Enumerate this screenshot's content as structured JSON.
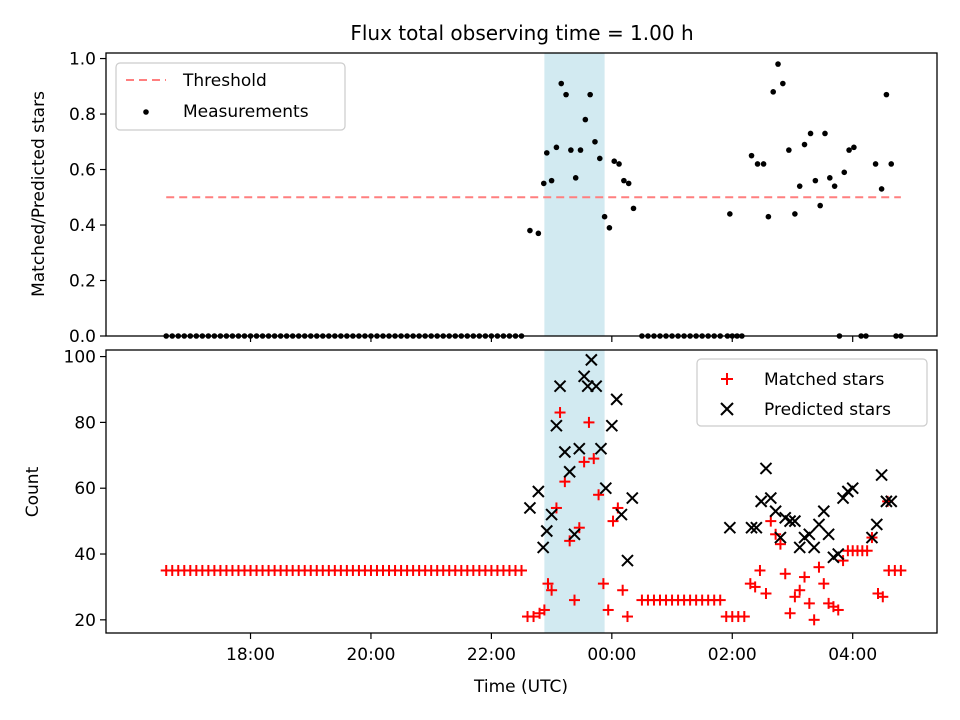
{
  "title": "Flux total observing time = 1.00 h",
  "chart_data": [
    {
      "type": "scatter",
      "panel": "top",
      "ylabel": "Matched/Predicted stars",
      "x_unit": "hours since 16:00 UTC",
      "xlim": [
        15.6,
        29.4
      ],
      "ylim": [
        0,
        1.02
      ],
      "yticks": [
        0.0,
        0.2,
        0.4,
        0.6,
        0.8,
        1.0
      ],
      "ytick_labels": [
        "0.0",
        "0.2",
        "0.4",
        "0.6",
        "0.8",
        "1.0"
      ],
      "highlight_span": [
        22.88,
        23.88
      ],
      "threshold": {
        "label": "Threshold",
        "y": 0.5,
        "x_range": [
          16.6,
          28.8
        ],
        "color": "#ff7f7f"
      },
      "legend": {
        "position": "upper left",
        "entries": [
          "Threshold",
          "Measurements"
        ]
      },
      "series": [
        {
          "name": "Measurements",
          "color": "#000000",
          "marker": "dot",
          "zero_run": {
            "x_start": 16.6,
            "x_end": 22.5,
            "step": 0.1,
            "y": 0
          },
          "zero_run2": {
            "x_start": 24.5,
            "x_end": 25.8,
            "step": 0.1,
            "y": 0
          },
          "points": [
            [
              22.64,
              0.38
            ],
            [
              22.78,
              0.37
            ],
            [
              22.87,
              0.55
            ],
            [
              22.92,
              0.66
            ],
            [
              23.0,
              0.56
            ],
            [
              23.08,
              0.68
            ],
            [
              23.16,
              0.91
            ],
            [
              23.24,
              0.87
            ],
            [
              23.32,
              0.67
            ],
            [
              23.4,
              0.57
            ],
            [
              23.48,
              0.67
            ],
            [
              23.56,
              0.78
            ],
            [
              23.64,
              0.87
            ],
            [
              23.72,
              0.7
            ],
            [
              23.8,
              0.64
            ],
            [
              23.88,
              0.43
            ],
            [
              23.96,
              0.39
            ],
            [
              24.04,
              0.63
            ],
            [
              24.12,
              0.62
            ],
            [
              24.2,
              0.56
            ],
            [
              24.28,
              0.55
            ],
            [
              24.36,
              0.46
            ],
            [
              25.92,
              0.0
            ],
            [
              26.0,
              0.0
            ],
            [
              26.08,
              0.0
            ],
            [
              26.16,
              0.0
            ],
            [
              25.96,
              0.44
            ],
            [
              26.32,
              0.65
            ],
            [
              26.42,
              0.62
            ],
            [
              26.52,
              0.62
            ],
            [
              26.6,
              0.43
            ],
            [
              26.68,
              0.88
            ],
            [
              26.76,
              0.98
            ],
            [
              26.84,
              0.91
            ],
            [
              26.94,
              0.67
            ],
            [
              27.04,
              0.44
            ],
            [
              27.12,
              0.54
            ],
            [
              27.2,
              0.69
            ],
            [
              27.3,
              0.73
            ],
            [
              27.38,
              0.56
            ],
            [
              27.46,
              0.47
            ],
            [
              27.54,
              0.73
            ],
            [
              27.62,
              0.57
            ],
            [
              27.7,
              0.54
            ],
            [
              27.78,
              0.0
            ],
            [
              27.86,
              0.59
            ],
            [
              27.94,
              0.67
            ],
            [
              28.02,
              0.68
            ],
            [
              28.14,
              0.0
            ],
            [
              28.22,
              0.0
            ],
            [
              28.38,
              0.62
            ],
            [
              28.48,
              0.53
            ],
            [
              28.56,
              0.87
            ],
            [
              28.64,
              0.62
            ],
            [
              28.72,
              0.0
            ],
            [
              28.8,
              0.0
            ]
          ]
        }
      ]
    },
    {
      "type": "scatter",
      "panel": "bottom",
      "ylabel": "Count",
      "xlabel": "Time (UTC)",
      "x_unit": "hours since 16:00 UTC",
      "xlim": [
        15.6,
        29.4
      ],
      "ylim": [
        16,
        102
      ],
      "xticks": [
        18,
        20,
        22,
        24,
        26,
        28
      ],
      "xtick_labels": [
        "18:00",
        "20:00",
        "22:00",
        "00:00",
        "02:00",
        "04:00"
      ],
      "yticks": [
        20,
        40,
        60,
        80,
        100
      ],
      "ytick_labels": [
        "20",
        "40",
        "60",
        "80",
        "100"
      ],
      "highlight_span": [
        22.88,
        23.88
      ],
      "legend": {
        "position": "upper right",
        "entries": [
          "Matched stars",
          "Predicted stars"
        ]
      },
      "series": [
        {
          "name": "Matched stars",
          "color": "#ff0000",
          "marker": "plus",
          "runs": [
            {
              "x_start": 16.6,
              "x_end": 22.5,
              "step": 0.1,
              "y": 35
            },
            {
              "x_start": 24.5,
              "x_end": 25.8,
              "step": 0.1,
              "y": 26
            },
            {
              "x_start": 25.9,
              "x_end": 26.2,
              "step": 0.1,
              "y": 21
            },
            {
              "x_start": 28.6,
              "x_end": 28.8,
              "step": 0.1,
              "y": 35
            }
          ],
          "points": [
            [
              22.6,
              21
            ],
            [
              22.7,
              21
            ],
            [
              22.8,
              22
            ],
            [
              22.88,
              23
            ],
            [
              22.94,
              31
            ],
            [
              23.0,
              29
            ],
            [
              23.08,
              54
            ],
            [
              23.14,
              83
            ],
            [
              23.22,
              62
            ],
            [
              23.3,
              44
            ],
            [
              23.38,
              26
            ],
            [
              23.46,
              48
            ],
            [
              23.54,
              68
            ],
            [
              23.62,
              80
            ],
            [
              23.7,
              69
            ],
            [
              23.78,
              58
            ],
            [
              23.86,
              31
            ],
            [
              23.94,
              23
            ],
            [
              24.02,
              50
            ],
            [
              24.1,
              54
            ],
            [
              24.18,
              29
            ],
            [
              24.26,
              21
            ],
            [
              26.3,
              31
            ],
            [
              26.38,
              30
            ],
            [
              26.46,
              35
            ],
            [
              26.56,
              28
            ],
            [
              26.64,
              50
            ],
            [
              26.72,
              46
            ],
            [
              26.8,
              43
            ],
            [
              26.88,
              34
            ],
            [
              26.96,
              22
            ],
            [
              27.04,
              27
            ],
            [
              27.12,
              29
            ],
            [
              27.2,
              33
            ],
            [
              27.28,
              25
            ],
            [
              27.36,
              20
            ],
            [
              27.44,
              36
            ],
            [
              27.52,
              31
            ],
            [
              27.6,
              25
            ],
            [
              27.68,
              24
            ],
            [
              27.76,
              23
            ],
            [
              27.84,
              38
            ],
            [
              27.92,
              41
            ],
            [
              28.0,
              41
            ],
            [
              28.08,
              41
            ],
            [
              28.16,
              41
            ],
            [
              28.24,
              41
            ],
            [
              28.32,
              45
            ],
            [
              28.42,
              28
            ],
            [
              28.5,
              27
            ],
            [
              28.58,
              56
            ]
          ]
        },
        {
          "name": "Predicted stars",
          "color": "#000000",
          "marker": "x",
          "points": [
            [
              22.64,
              54
            ],
            [
              22.78,
              59
            ],
            [
              22.86,
              42
            ],
            [
              22.92,
              47
            ],
            [
              23.0,
              52
            ],
            [
              23.08,
              79
            ],
            [
              23.14,
              91
            ],
            [
              23.22,
              71
            ],
            [
              23.3,
              65
            ],
            [
              23.38,
              46
            ],
            [
              23.46,
              72
            ],
            [
              23.54,
              94
            ],
            [
              23.6,
              91
            ],
            [
              23.66,
              99
            ],
            [
              23.74,
              91
            ],
            [
              23.82,
              72
            ],
            [
              23.9,
              60
            ],
            [
              24.0,
              79
            ],
            [
              24.08,
              87
            ],
            [
              24.16,
              52
            ],
            [
              24.26,
              38
            ],
            [
              24.34,
              57
            ],
            [
              25.96,
              48
            ],
            [
              26.32,
              48
            ],
            [
              26.4,
              48
            ],
            [
              26.48,
              56
            ],
            [
              26.56,
              66
            ],
            [
              26.64,
              57
            ],
            [
              26.72,
              53
            ],
            [
              26.8,
              45
            ],
            [
              26.88,
              51
            ],
            [
              26.96,
              50
            ],
            [
              27.04,
              50
            ],
            [
              27.12,
              42
            ],
            [
              27.2,
              45
            ],
            [
              27.28,
              46
            ],
            [
              27.36,
              42
            ],
            [
              27.44,
              49
            ],
            [
              27.52,
              53
            ],
            [
              27.6,
              46
            ],
            [
              27.68,
              39
            ],
            [
              27.76,
              40
            ],
            [
              27.84,
              57
            ],
            [
              27.92,
              59
            ],
            [
              28.0,
              60
            ],
            [
              28.32,
              45
            ],
            [
              28.4,
              49
            ],
            [
              28.48,
              64
            ],
            [
              28.56,
              56
            ],
            [
              28.64,
              56
            ]
          ]
        }
      ]
    }
  ]
}
